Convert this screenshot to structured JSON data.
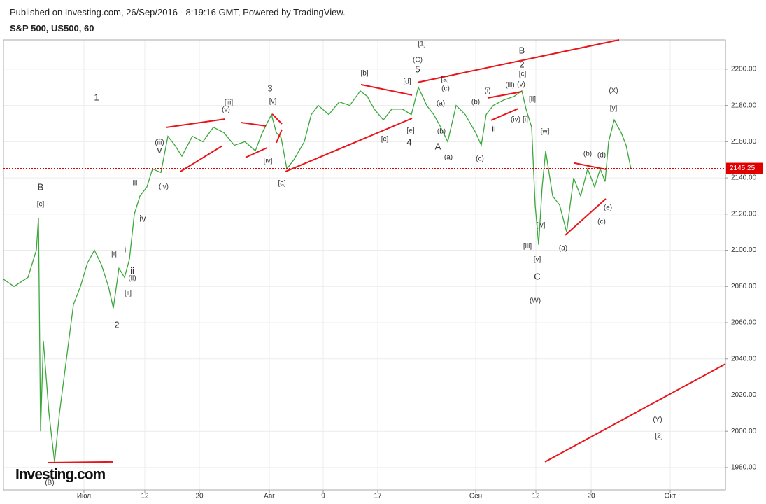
{
  "header": {
    "published": "Published on Investing.com, 26/Sep/2016 - 8:19:16 GMT, Powered by TradingView."
  },
  "logo": {
    "text": "Investing.com"
  },
  "chart_data": {
    "type": "line",
    "title": "S&P 500, US500, 60",
    "color": "#3aa83a",
    "grid": true,
    "xlim": [
      0,
      1032
    ],
    "ylim": [
      1967.6,
      2216.2
    ],
    "xticks": [
      {
        "value": 115,
        "label": "Июл"
      },
      {
        "value": 202,
        "label": "12"
      },
      {
        "value": 280,
        "label": "20"
      },
      {
        "value": 380,
        "label": "Авг"
      },
      {
        "value": 457,
        "label": "9"
      },
      {
        "value": 535,
        "label": "17"
      },
      {
        "value": 675,
        "label": "Сен"
      },
      {
        "value": 761,
        "label": "12"
      },
      {
        "value": 840,
        "label": "20"
      },
      {
        "value": 953,
        "label": "Окт"
      }
    ],
    "yticks": [
      {
        "value": 1980,
        "label": "1980.00"
      },
      {
        "value": 2000,
        "label": "2000.00"
      },
      {
        "value": 2020,
        "label": "2020.00"
      },
      {
        "value": 2040,
        "label": "2040.00"
      },
      {
        "value": 2060,
        "label": "2060.00"
      },
      {
        "value": 2080,
        "label": "2080.00"
      },
      {
        "value": 2100,
        "label": "2100.00"
      },
      {
        "value": 2120,
        "label": "2120.00"
      },
      {
        "value": 2140,
        "label": "2140.00"
      },
      {
        "value": 2160,
        "label": "2160.00"
      },
      {
        "value": 2180,
        "label": "2180.00"
      },
      {
        "value": 2200,
        "label": "2200.00"
      }
    ],
    "x": [
      0,
      15,
      35,
      47,
      50,
      53,
      57,
      65,
      73,
      80,
      90,
      100,
      110,
      120,
      130,
      140,
      150,
      157,
      165,
      173,
      180,
      187,
      195,
      205,
      213,
      225,
      235,
      245,
      255,
      270,
      285,
      300,
      315,
      330,
      345,
      360,
      370,
      383,
      390,
      397,
      405,
      415,
      430,
      440,
      450,
      465,
      480,
      495,
      510,
      520,
      530,
      543,
      555,
      570,
      583,
      593,
      605,
      615,
      625,
      635,
      647,
      660,
      675,
      683,
      690,
      700,
      715,
      730,
      741,
      747,
      755,
      760,
      765,
      770,
      775,
      785,
      795,
      805,
      815,
      825,
      835,
      845,
      853,
      860,
      865,
      873,
      883,
      890,
      897
    ],
    "values": [
      2084,
      2080,
      2085,
      2100,
      2118,
      2000,
      2050,
      2010,
      1983,
      2010,
      2040,
      2070,
      2080,
      2093,
      2100,
      2092,
      2080,
      2068,
      2090,
      2085,
      2095,
      2120,
      2130,
      2135,
      2145,
      2143,
      2163,
      2158,
      2152,
      2163,
      2160,
      2168,
      2165,
      2158,
      2160,
      2155,
      2165,
      2175,
      2165,
      2162,
      2145,
      2150,
      2160,
      2175,
      2180,
      2175,
      2182,
      2180,
      2188,
      2185,
      2178,
      2172,
      2178,
      2178,
      2175,
      2190,
      2180,
      2175,
      2168,
      2160,
      2180,
      2175,
      2165,
      2158,
      2175,
      2180,
      2183,
      2185,
      2188,
      2178,
      2168,
      2125,
      2103,
      2135,
      2155,
      2130,
      2125,
      2110,
      2140,
      2130,
      2145,
      2135,
      2145,
      2138,
      2160,
      2172,
      2165,
      2158,
      2145
    ],
    "last_price": 2145.25,
    "last_price_color": "#e00000",
    "trendline_color": "#e8151b",
    "trendlines": [
      {
        "x": [
          63,
          157
        ],
        "y": [
          1982.7,
          1983.1
        ]
      },
      {
        "x": [
          233,
          317
        ],
        "y": [
          2167.9,
          2172.5
        ]
      },
      {
        "x": [
          253,
          313
        ],
        "y": [
          2143.5,
          2157.8
        ]
      },
      {
        "x": [
          339,
          375
        ],
        "y": [
          2170.6,
          2168.7
        ]
      },
      {
        "x": [
          346,
          377
        ],
        "y": [
          2151.3,
          2156.7
        ]
      },
      {
        "x": [
          384,
          398
        ],
        "y": [
          2175.3,
          2169.8
        ]
      },
      {
        "x": [
          390,
          398
        ],
        "y": [
          2159.4,
          2166.7
        ]
      },
      {
        "x": [
          403,
          584
        ],
        "y": [
          2143.5,
          2172.9
        ]
      },
      {
        "x": [
          511,
          584
        ],
        "y": [
          2191.5,
          2185.7
        ]
      },
      {
        "x": [
          592,
          880
        ],
        "y": [
          2192.7,
          2216.2
        ]
      },
      {
        "x": [
          692,
          741
        ],
        "y": [
          2184.1,
          2187.6
        ]
      },
      {
        "x": [
          697,
          736
        ],
        "y": [
          2171.8,
          2178.3
        ]
      },
      {
        "x": [
          816,
          861
        ],
        "y": [
          2148.2,
          2144.7
        ]
      },
      {
        "x": [
          803,
          861
        ],
        "y": [
          2108.4,
          2128.5
        ]
      },
      {
        "x": [
          774,
          1032
        ],
        "y": [
          1983.1,
          2037.2
        ]
      }
    ],
    "annotations": [
      {
        "text": "B",
        "x": 53,
        "y": 2134.6
      },
      {
        "text": "[c]",
        "x": 53,
        "y": 2125.4
      },
      {
        "text": "1",
        "x": 133,
        "y": 2184.1
      },
      {
        "text": "2",
        "x": 162,
        "y": 2058.5
      },
      {
        "text": "[i]",
        "x": 158,
        "y": 2097.9
      },
      {
        "text": "i",
        "x": 174,
        "y": 2100.2
      },
      {
        "text": "ii",
        "x": 184,
        "y": 2088.2
      },
      {
        "text": "(ii)",
        "x": 184,
        "y": 2084.4
      },
      {
        "text": "[ii]",
        "x": 178,
        "y": 2076.3
      },
      {
        "text": "iii",
        "x": 188,
        "y": 2137
      },
      {
        "text": "iv",
        "x": 199,
        "y": 2117.2
      },
      {
        "text": "(iii)",
        "x": 223,
        "y": 2159.4
      },
      {
        "text": "v",
        "x": 223,
        "y": 2154.8
      },
      {
        "text": "(iv)",
        "x": 229,
        "y": 2135
      },
      {
        "text": "[iii]",
        "x": 322,
        "y": 2181.4
      },
      {
        "text": "(v)",
        "x": 318,
        "y": 2177.6
      },
      {
        "text": "[iv]",
        "x": 378,
        "y": 2149.3
      },
      {
        "text": "3",
        "x": 381,
        "y": 2189.2
      },
      {
        "text": "[v]",
        "x": 385,
        "y": 2182.2
      },
      {
        "text": "[a]",
        "x": 398,
        "y": 2137
      },
      {
        "text": "[b]",
        "x": 516,
        "y": 2197.7
      },
      {
        "text": "[c]",
        "x": 545,
        "y": 2161.3
      },
      {
        "text": "[d]",
        "x": 577,
        "y": 2193
      },
      {
        "text": "[e]",
        "x": 582,
        "y": 2166
      },
      {
        "text": "4",
        "x": 580,
        "y": 2159.4
      },
      {
        "text": "[1]",
        "x": 598,
        "y": 2213.9
      },
      {
        "text": "(C)",
        "x": 592,
        "y": 2205
      },
      {
        "text": "5",
        "x": 592,
        "y": 2199.6
      },
      {
        "text": "[a]",
        "x": 631,
        "y": 2194.2
      },
      {
        "text": "(c)",
        "x": 632,
        "y": 2189.2
      },
      {
        "text": "(a)",
        "x": 625,
        "y": 2181
      },
      {
        "text": "(b)",
        "x": 626,
        "y": 2165.6
      },
      {
        "text": "A",
        "x": 621,
        "y": 2157.1
      },
      {
        "text": "(a)",
        "x": 636,
        "y": 2151.3
      },
      {
        "text": "(b)",
        "x": 675,
        "y": 2181.8
      },
      {
        "text": "(c)",
        "x": 681,
        "y": 2150.5
      },
      {
        "text": "(i)",
        "x": 692,
        "y": 2188
      },
      {
        "text": "(iii)",
        "x": 724,
        "y": 2191.1
      },
      {
        "text": "(v)",
        "x": 740,
        "y": 2191.5
      },
      {
        "text": "[c]",
        "x": 742,
        "y": 2197.3
      },
      {
        "text": "2",
        "x": 741,
        "y": 2202.3
      },
      {
        "text": "B",
        "x": 741,
        "y": 2210
      },
      {
        "text": "ii",
        "x": 701,
        "y": 2167.1
      },
      {
        "text": "(iv)",
        "x": 732,
        "y": 2172.2
      },
      {
        "text": "[ii]",
        "x": 756,
        "y": 2183.4
      },
      {
        "text": "[i]",
        "x": 746,
        "y": 2172.2
      },
      {
        "text": "[w]",
        "x": 774,
        "y": 2165.6
      },
      {
        "text": "[iv]",
        "x": 768,
        "y": 2113.8
      },
      {
        "text": "[iii]",
        "x": 749,
        "y": 2102.2
      },
      {
        "text": "[v]",
        "x": 763,
        "y": 2094.8
      },
      {
        "text": "C",
        "x": 763,
        "y": 2085.2
      },
      {
        "text": "(W)",
        "x": 760,
        "y": 2072
      },
      {
        "text": "(a)",
        "x": 800,
        "y": 2101
      },
      {
        "text": "(b)",
        "x": 835,
        "y": 2153.2
      },
      {
        "text": "(c)",
        "x": 855,
        "y": 2115.7
      },
      {
        "text": "(d)",
        "x": 855,
        "y": 2152.4
      },
      {
        "text": "(e)",
        "x": 864,
        "y": 2123.4
      },
      {
        "text": "(X)",
        "x": 872,
        "y": 2188
      },
      {
        "text": "[y]",
        "x": 872,
        "y": 2178.3
      },
      {
        "text": "(Y)",
        "x": 935,
        "y": 2006.3
      },
      {
        "text": "[2]",
        "x": 937,
        "y": 1997.4
      },
      {
        "text": "(B)",
        "x": 66,
        "y": 1971.5
      }
    ]
  }
}
